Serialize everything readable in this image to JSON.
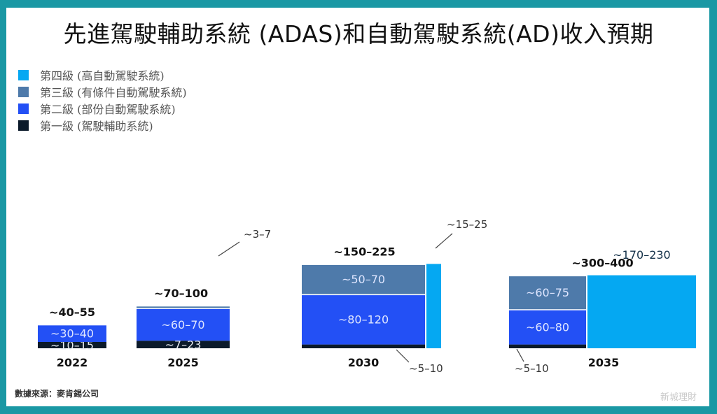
{
  "chart_data": {
    "type": "bar",
    "title": "先進駕駛輔助系統 (ADAS)和自動駕駛系統(AD)收入預期",
    "xlabel": "",
    "ylabel": "",
    "grid": false,
    "legend_position": "top-left",
    "categories": [
      "2022",
      "2025",
      "2030",
      "2035"
    ],
    "series": [
      {
        "key": "l1",
        "name": "第一級 (駕駛輔助系統)",
        "color": "#0b1a2a",
        "values": [
          "~10–15",
          "~7–23",
          "~5–10",
          "~5–10"
        ],
        "mid": [
          12.5,
          15,
          7.5,
          7.5
        ]
      },
      {
        "key": "l2",
        "name": "第二級 (部份自動駕駛系統)",
        "color": "#2350f5",
        "values": [
          "~30–40",
          "~60–70",
          "~80–120",
          "~60–80"
        ],
        "mid": [
          35,
          65,
          100,
          70
        ]
      },
      {
        "key": "l3",
        "name": "第三級 (有條件自動駕駛系統)",
        "color": "#4e7aaa",
        "values": [
          null,
          "~3–7",
          "~50–70",
          "~60–75"
        ],
        "mid": [
          0,
          5,
          60,
          67.5
        ]
      },
      {
        "key": "l4",
        "name": "第四級 (高自動駕駛系統)",
        "color": "#05a8f2",
        "values": [
          null,
          null,
          "~15–25",
          "~170–230"
        ],
        "mid": [
          0,
          0,
          20,
          200
        ]
      }
    ],
    "totals": [
      "~40–55",
      "~70–100",
      "~150–225",
      "~300–400"
    ]
  },
  "legend_order": [
    3,
    2,
    1,
    0
  ],
  "watermark": "新城理財",
  "source": "數據來源：麥肯錫公司"
}
